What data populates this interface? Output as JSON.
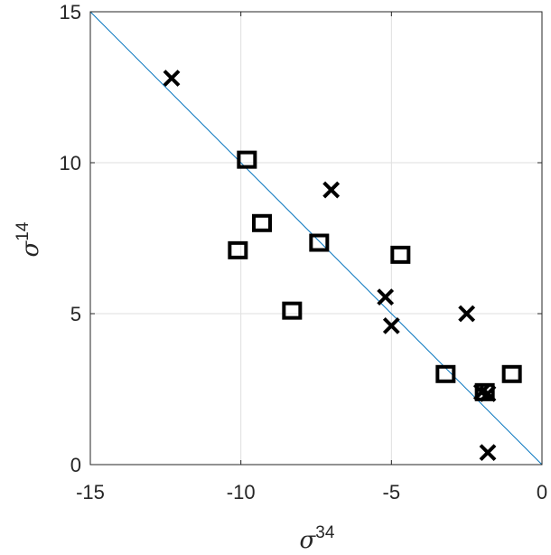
{
  "chart_data": {
    "type": "scatter",
    "xlabel": {
      "base": "σ",
      "sup": "34"
    },
    "ylabel": {
      "base": "σ",
      "sup": "14"
    },
    "xlim": [
      -15,
      0
    ],
    "ylim": [
      0,
      15
    ],
    "xticks": [
      -15,
      -10,
      -5,
      0
    ],
    "yticks": [
      0,
      5,
      10,
      15
    ],
    "xtick_labels": [
      "-15",
      "-10",
      "-5",
      "0"
    ],
    "ytick_labels": [
      "0",
      "5",
      "10",
      "15"
    ],
    "grid": true,
    "reference_line": {
      "x": [
        -15,
        0
      ],
      "y": [
        15,
        0
      ],
      "color": "#0072BD"
    },
    "series": [
      {
        "marker": "square",
        "color": "#000000",
        "points": [
          {
            "x": -9.8,
            "y": 10.1
          },
          {
            "x": -9.3,
            "y": 8.0
          },
          {
            "x": -10.1,
            "y": 7.1
          },
          {
            "x": -7.4,
            "y": 7.35
          },
          {
            "x": -8.3,
            "y": 5.1
          },
          {
            "x": -4.7,
            "y": 6.95
          },
          {
            "x": -3.2,
            "y": 3.0
          },
          {
            "x": -1.0,
            "y": 3.0
          },
          {
            "x": -1.9,
            "y": 2.4
          }
        ]
      },
      {
        "marker": "x",
        "color": "#000000",
        "points": [
          {
            "x": -12.3,
            "y": 12.8
          },
          {
            "x": -7.0,
            "y": 9.1
          },
          {
            "x": -5.2,
            "y": 5.55
          },
          {
            "x": -5.0,
            "y": 4.6
          },
          {
            "x": -2.5,
            "y": 5.0
          },
          {
            "x": -2.0,
            "y": 2.4
          },
          {
            "x": -1.8,
            "y": 2.35
          },
          {
            "x": -1.8,
            "y": 0.4
          }
        ]
      }
    ]
  }
}
